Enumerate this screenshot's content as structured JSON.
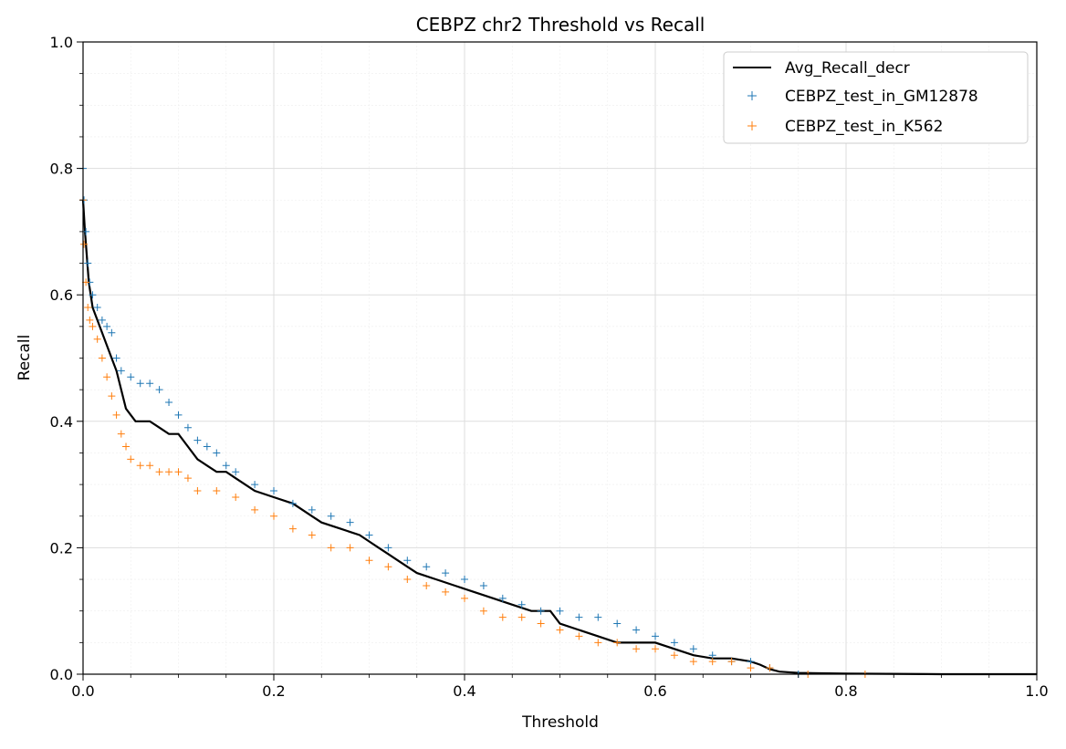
{
  "chart_data": {
    "type": "line",
    "title": "CEBPZ chr2 Threshold vs Recall",
    "xlabel": "Threshold",
    "ylabel": "Recall",
    "xlim": [
      0.0,
      1.0
    ],
    "ylim": [
      0.0,
      1.0
    ],
    "xticks": [
      "0.0",
      "0.2",
      "0.4",
      "0.6",
      "0.8",
      "1.0"
    ],
    "yticks": [
      "0.0",
      "0.2",
      "0.4",
      "0.6",
      "0.8",
      "1.0"
    ],
    "grid": true,
    "legend_position": "top-right",
    "series": [
      {
        "name": "Avg_Recall_decr",
        "style": "line",
        "color": "#000000",
        "x": [
          0.0,
          0.002,
          0.004,
          0.006,
          0.008,
          0.01,
          0.015,
          0.02,
          0.025,
          0.03,
          0.035,
          0.04,
          0.045,
          0.05,
          0.055,
          0.06,
          0.07,
          0.08,
          0.09,
          0.1,
          0.11,
          0.12,
          0.13,
          0.14,
          0.15,
          0.16,
          0.17,
          0.18,
          0.2,
          0.22,
          0.24,
          0.25,
          0.27,
          0.29,
          0.3,
          0.31,
          0.32,
          0.33,
          0.34,
          0.35,
          0.37,
          0.39,
          0.41,
          0.43,
          0.45,
          0.47,
          0.49,
          0.5,
          0.52,
          0.54,
          0.56,
          0.58,
          0.6,
          0.62,
          0.64,
          0.66,
          0.68,
          0.7,
          0.71,
          0.72,
          0.73,
          0.75,
          0.8,
          0.9,
          1.0
        ],
        "y": [
          0.75,
          0.7,
          0.66,
          0.62,
          0.6,
          0.58,
          0.56,
          0.54,
          0.52,
          0.5,
          0.48,
          0.45,
          0.42,
          0.41,
          0.4,
          0.4,
          0.4,
          0.39,
          0.38,
          0.38,
          0.36,
          0.34,
          0.33,
          0.32,
          0.32,
          0.31,
          0.3,
          0.29,
          0.28,
          0.27,
          0.25,
          0.24,
          0.23,
          0.22,
          0.21,
          0.2,
          0.19,
          0.18,
          0.17,
          0.16,
          0.15,
          0.14,
          0.13,
          0.12,
          0.11,
          0.1,
          0.1,
          0.08,
          0.07,
          0.06,
          0.05,
          0.05,
          0.05,
          0.04,
          0.03,
          0.025,
          0.025,
          0.02,
          0.015,
          0.008,
          0.004,
          0.002,
          0.001,
          0.0,
          0.0
        ]
      },
      {
        "name": "CEBPZ_test_in_GM12878",
        "style": "marker",
        "color": "#1f77b4",
        "x": [
          0.0,
          0.001,
          0.003,
          0.005,
          0.007,
          0.01,
          0.015,
          0.02,
          0.025,
          0.03,
          0.035,
          0.04,
          0.05,
          0.06,
          0.07,
          0.08,
          0.09,
          0.1,
          0.11,
          0.12,
          0.13,
          0.14,
          0.15,
          0.16,
          0.18,
          0.2,
          0.22,
          0.24,
          0.26,
          0.28,
          0.3,
          0.32,
          0.34,
          0.36,
          0.38,
          0.4,
          0.42,
          0.44,
          0.46,
          0.48,
          0.5,
          0.52,
          0.54,
          0.56,
          0.58,
          0.6,
          0.62,
          0.64,
          0.66,
          0.68,
          0.7,
          0.72,
          0.75
        ],
        "y": [
          0.8,
          0.75,
          0.7,
          0.65,
          0.62,
          0.6,
          0.58,
          0.56,
          0.55,
          0.54,
          0.5,
          0.48,
          0.47,
          0.46,
          0.46,
          0.45,
          0.43,
          0.41,
          0.39,
          0.37,
          0.36,
          0.35,
          0.33,
          0.32,
          0.3,
          0.29,
          0.27,
          0.26,
          0.25,
          0.24,
          0.22,
          0.2,
          0.18,
          0.17,
          0.16,
          0.15,
          0.14,
          0.12,
          0.11,
          0.1,
          0.1,
          0.09,
          0.09,
          0.08,
          0.07,
          0.06,
          0.05,
          0.04,
          0.03,
          0.02,
          0.02,
          0.01,
          0.0
        ]
      },
      {
        "name": "CEBPZ_test_in_K562",
        "style": "marker",
        "color": "#ff7f0e",
        "x": [
          0.0,
          0.001,
          0.003,
          0.005,
          0.007,
          0.01,
          0.015,
          0.02,
          0.025,
          0.03,
          0.035,
          0.04,
          0.045,
          0.05,
          0.06,
          0.07,
          0.08,
          0.09,
          0.1,
          0.11,
          0.12,
          0.14,
          0.16,
          0.18,
          0.2,
          0.22,
          0.24,
          0.26,
          0.28,
          0.3,
          0.32,
          0.34,
          0.36,
          0.38,
          0.4,
          0.42,
          0.44,
          0.46,
          0.48,
          0.5,
          0.52,
          0.54,
          0.56,
          0.58,
          0.6,
          0.62,
          0.64,
          0.66,
          0.68,
          0.7,
          0.72,
          0.76,
          0.82
        ],
        "y": [
          0.75,
          0.68,
          0.62,
          0.58,
          0.56,
          0.55,
          0.53,
          0.5,
          0.47,
          0.44,
          0.41,
          0.38,
          0.36,
          0.34,
          0.33,
          0.33,
          0.32,
          0.32,
          0.32,
          0.31,
          0.29,
          0.29,
          0.28,
          0.26,
          0.25,
          0.23,
          0.22,
          0.2,
          0.2,
          0.18,
          0.17,
          0.15,
          0.14,
          0.13,
          0.12,
          0.1,
          0.09,
          0.09,
          0.08,
          0.07,
          0.06,
          0.05,
          0.05,
          0.04,
          0.04,
          0.03,
          0.02,
          0.02,
          0.02,
          0.01,
          0.01,
          0.0,
          0.0
        ]
      }
    ]
  }
}
